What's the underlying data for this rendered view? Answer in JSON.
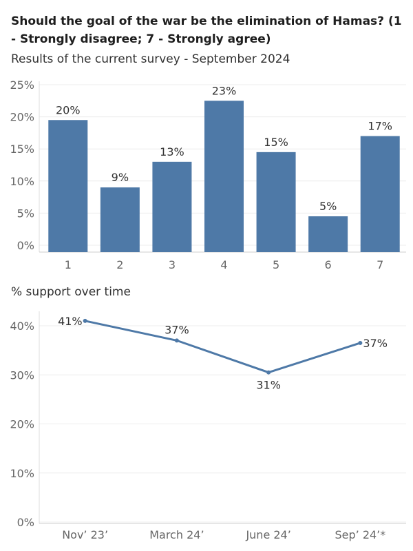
{
  "title": "Should the goal of the war be the elimination of Hamas? (1 - Strongly disagree; 7 - Strongly agree)",
  "subtitle": "Results of the current survey - September 2024",
  "chart_data": [
    {
      "type": "bar",
      "categories": [
        "1",
        "2",
        "3",
        "4",
        "5",
        "6",
        "7"
      ],
      "values": [
        19.5,
        9,
        13,
        22.5,
        14.5,
        4.5,
        17
      ],
      "value_labels": [
        "20%",
        "9%",
        "13%",
        "23%",
        "15%",
        "5%",
        "17%"
      ],
      "y_ticks": [
        0,
        5,
        10,
        15,
        20,
        25
      ],
      "y_tick_labels": [
        "0%",
        "5%",
        "10%",
        "15%",
        "20%",
        "25%"
      ],
      "ylim": [
        0,
        25
      ],
      "bar_color": "#4e79a7",
      "grid": true
    },
    {
      "type": "line",
      "title": "% support over time",
      "categories": [
        "Nov’ 23’",
        "March 24’",
        "June 24’",
        "Sep’ 24’*"
      ],
      "values": [
        41,
        37,
        30.5,
        36.5
      ],
      "value_labels": [
        "41%",
        "37%",
        "31%",
        "37%"
      ],
      "y_ticks": [
        0,
        10,
        20,
        30,
        40
      ],
      "y_tick_labels": [
        "0%",
        "10%",
        "20%",
        "30%",
        "40%"
      ],
      "ylim": [
        0,
        41
      ],
      "line_color": "#4e79a7",
      "grid": true
    }
  ]
}
